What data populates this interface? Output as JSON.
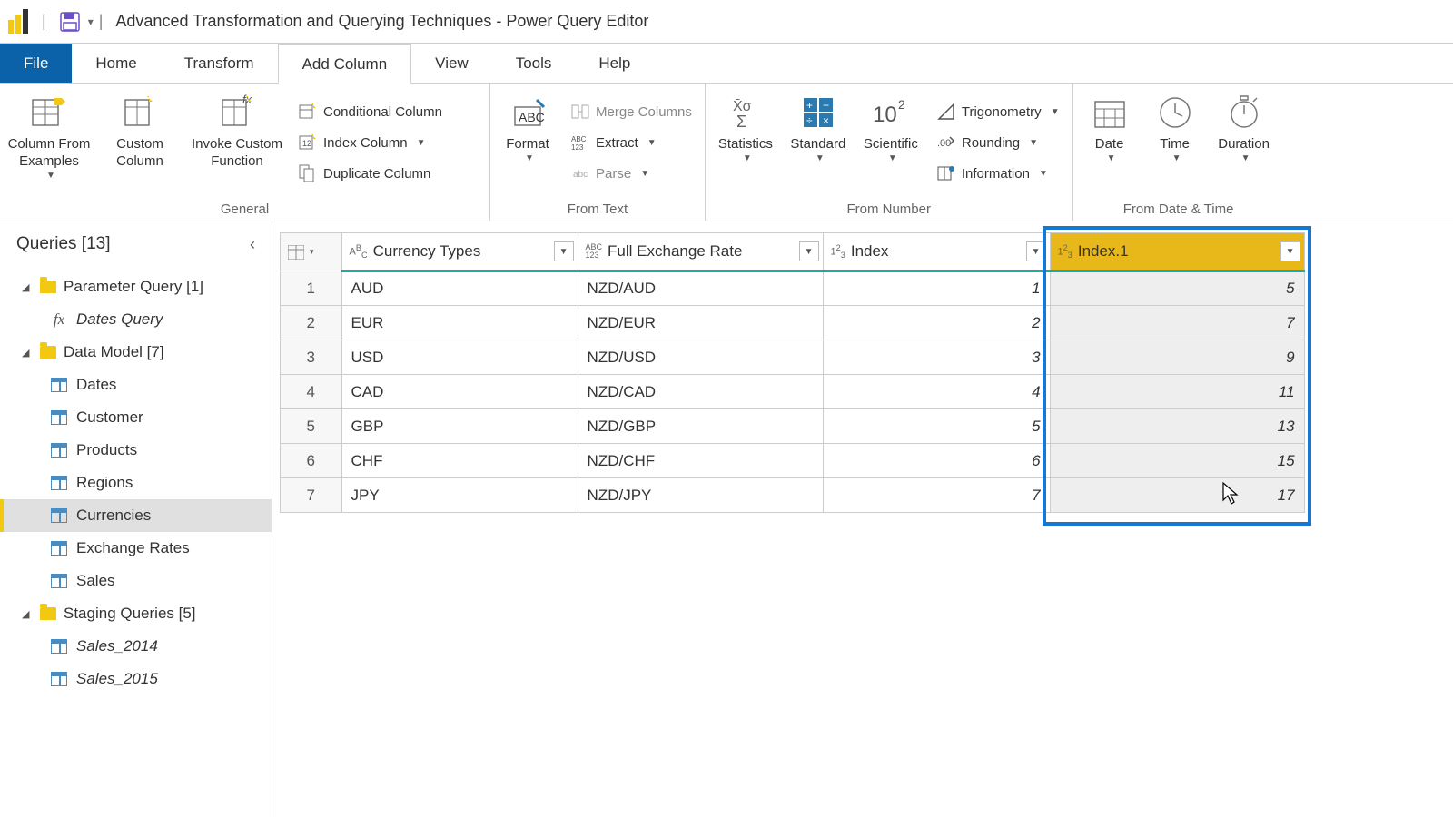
{
  "title": "Advanced Transformation and Querying Techniques - Power Query Editor",
  "tabs": {
    "file": "File",
    "home": "Home",
    "transform": "Transform",
    "addColumn": "Add Column",
    "view": "View",
    "tools": "Tools",
    "help": "Help"
  },
  "ribbon": {
    "general": {
      "label": "General",
      "columnFromExamples": "Column From\nExamples",
      "customColumn": "Custom\nColumn",
      "invokeCustomFunction": "Invoke Custom\nFunction",
      "conditionalColumn": "Conditional Column",
      "indexColumn": "Index Column",
      "duplicateColumn": "Duplicate Column"
    },
    "fromText": {
      "label": "From Text",
      "format": "Format",
      "mergeColumns": "Merge Columns",
      "extract": "Extract",
      "parse": "Parse"
    },
    "fromNumber": {
      "label": "From Number",
      "statistics": "Statistics",
      "standard": "Standard",
      "scientific": "Scientific",
      "trigonometry": "Trigonometry",
      "rounding": "Rounding",
      "information": "Information"
    },
    "fromDateTime": {
      "label": "From Date & Time",
      "date": "Date",
      "time": "Time",
      "duration": "Duration"
    }
  },
  "sidebar": {
    "header": "Queries [13]",
    "groups": [
      {
        "label": "Parameter Query [1]",
        "items": [
          {
            "label": "Dates Query",
            "icon": "fx",
            "italic": true
          }
        ]
      },
      {
        "label": "Data Model [7]",
        "items": [
          {
            "label": "Dates",
            "icon": "table"
          },
          {
            "label": "Customer",
            "icon": "table"
          },
          {
            "label": "Products",
            "icon": "table"
          },
          {
            "label": "Regions",
            "icon": "table"
          },
          {
            "label": "Currencies",
            "icon": "table",
            "selected": true
          },
          {
            "label": "Exchange Rates",
            "icon": "table"
          },
          {
            "label": "Sales",
            "icon": "table"
          }
        ]
      },
      {
        "label": "Staging Queries [5]",
        "items": [
          {
            "label": "Sales_2014",
            "icon": "table",
            "italic": true
          },
          {
            "label": "Sales_2015",
            "icon": "table",
            "italic": true
          }
        ]
      }
    ]
  },
  "grid": {
    "columns": [
      {
        "name": "Currency Types",
        "typeIcon": "ABC",
        "typeSub": "",
        "class": "col-currency"
      },
      {
        "name": "Full Exchange Rate",
        "typeIcon": "ABC123",
        "class": "col-exchange"
      },
      {
        "name": "Index",
        "typeIcon": "123",
        "class": "col-index"
      },
      {
        "name": "Index.1",
        "typeIcon": "123",
        "class": "col-index1",
        "selected": true
      }
    ],
    "rows": [
      {
        "n": 1,
        "currency": "AUD",
        "exchange": "NZD/AUD",
        "index": 1,
        "index1": 5
      },
      {
        "n": 2,
        "currency": "EUR",
        "exchange": "NZD/EUR",
        "index": 2,
        "index1": 7
      },
      {
        "n": 3,
        "currency": "USD",
        "exchange": "NZD/USD",
        "index": 3,
        "index1": 9
      },
      {
        "n": 4,
        "currency": "CAD",
        "exchange": "NZD/CAD",
        "index": 4,
        "index1": 11
      },
      {
        "n": 5,
        "currency": "GBP",
        "exchange": "NZD/GBP",
        "index": 5,
        "index1": 13
      },
      {
        "n": 6,
        "currency": "CHF",
        "exchange": "NZD/CHF",
        "index": 6,
        "index1": 15
      },
      {
        "n": 7,
        "currency": "JPY",
        "exchange": "NZD/JPY",
        "index": 7,
        "index1": 17
      }
    ]
  },
  "colors": {
    "accentYellow": "#f2c811",
    "fileTab": "#0b62a8",
    "teal": "#1aab9b",
    "highlight": "#1778d3",
    "selectedHeader": "#e8b71a"
  }
}
